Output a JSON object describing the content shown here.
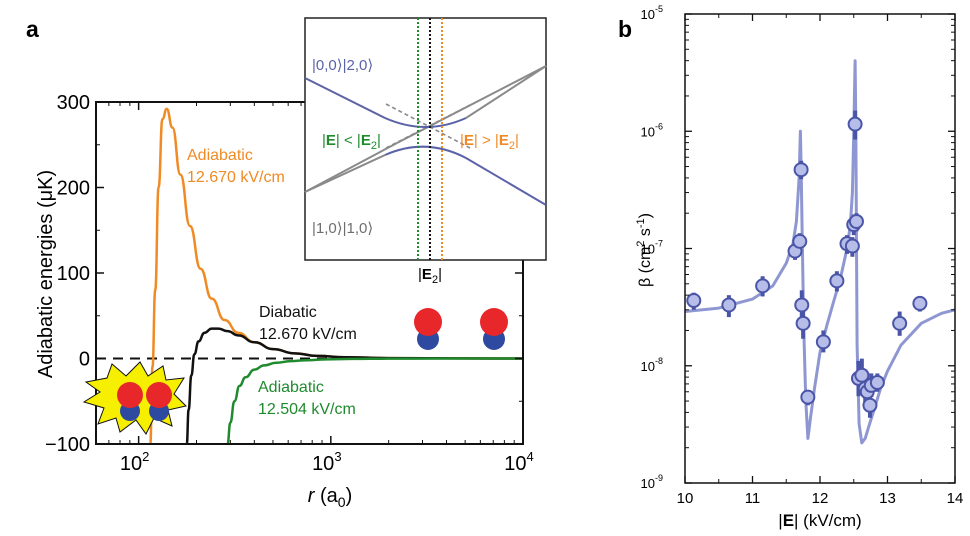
{
  "panel_a": {
    "label": "a",
    "chart_data": {
      "type": "line",
      "xlabel_italic": "r",
      "xlabel_rest": " (a",
      "xlabel_sub": "0",
      "xlabel_close": ")",
      "ylabel": "Adiabatic energies (μK)",
      "xscale": "log",
      "xlim": [
        60,
        10000
      ],
      "ylim": [
        -100,
        300
      ],
      "xticks": [
        {
          "base": "10",
          "exp": "2",
          "value": 100
        },
        {
          "base": "10",
          "exp": "3",
          "value": 1000
        },
        {
          "base": "10",
          "exp": "4",
          "value": 10000
        }
      ],
      "yticks": [
        {
          "label": "300",
          "value": 300
        },
        {
          "label": "200",
          "value": 200
        },
        {
          "label": "100",
          "value": 100
        },
        {
          "label": "0",
          "value": 0
        },
        {
          "label": "−100",
          "value": -100
        }
      ],
      "series": [
        {
          "name": "Adiabatic 12.670 kV/cm",
          "color": "#f08a24",
          "line1": "Adiabatic",
          "line2": "12.670 kV/cm",
          "r": [
            115,
            118,
            122,
            127,
            133,
            140,
            150,
            165,
            185,
            210,
            240,
            280,
            330,
            400,
            500,
            650,
            850,
            1200,
            2000,
            5000,
            10000
          ],
          "E": [
            -100,
            -10,
            80,
            200,
            280,
            292,
            270,
            215,
            155,
            105,
            70,
            45,
            30,
            19,
            11,
            6,
            3,
            1.5,
            0.5,
            0.1,
            0
          ]
        },
        {
          "name": "Diabatic 12.670 kV/cm",
          "color": "#111111",
          "line1": "Diabatic",
          "line2": "12.670 kV/cm",
          "r": [
            178,
            182,
            188,
            195,
            205,
            220,
            240,
            260,
            290,
            330,
            400,
            500,
            650,
            850,
            1200,
            2000,
            5000,
            10000
          ],
          "E": [
            -100,
            -60,
            -20,
            5,
            20,
            30,
            35,
            35,
            32,
            27,
            19,
            11,
            6,
            3,
            1.5,
            0.5,
            0.1,
            0
          ]
        },
        {
          "name": "Adiabatic 12.504 kV/cm",
          "color": "#1f8a2e",
          "line1": "Adiabatic",
          "line2": "12.504 kV/cm",
          "r": [
            290,
            300,
            315,
            335,
            360,
            400,
            450,
            520,
            620,
            750,
            950,
            1300,
            2000,
            4000,
            10000
          ],
          "E": [
            -100,
            -75,
            -50,
            -32,
            -22,
            -13,
            -8,
            -5,
            -3,
            -2,
            -1,
            -0.5,
            -0.2,
            -0.05,
            0
          ]
        }
      ],
      "zero_line": 0
    },
    "inset": {
      "top_label": "|0,0⟩|2,0⟩",
      "bottom_label": "|1,0⟩|1,0⟩",
      "left_cond_a": "|",
      "left_cond_E": "E",
      "left_cond_b": "| < |",
      "left_cond_E2": "E",
      "left_cond_sub": "2",
      "left_cond_c": "|",
      "right_cond_a": "|",
      "right_cond_E": "E",
      "right_cond_b": "| > |",
      "right_cond_E2": "E",
      "right_cond_sub": "2",
      "right_cond_c": "|",
      "axis_a": "|",
      "axis_E": "E",
      "axis_sub": "2",
      "axis_c": "|",
      "colors": {
        "blue": "#5b63a8",
        "gray": "#8a8a8a",
        "green": "#1f8a2e",
        "orange": "#f08a24",
        "black": "#111111"
      }
    }
  },
  "panel_b": {
    "label": "b",
    "chart_data": {
      "type": "scatter",
      "xlabel_a": "|",
      "xlabel_E": "E",
      "xlabel_rest": "| (kV/cm)",
      "ylabel_main": "β (cm",
      "ylabel_sup1": "2",
      "ylabel_mid": " s",
      "ylabel_sup2": "-1",
      "ylabel_close": ")",
      "yscale": "log",
      "xlim": [
        10,
        14
      ],
      "ylim": [
        1e-09,
        1e-05
      ],
      "xticks": [
        {
          "label": "10",
          "value": 10
        },
        {
          "label": "11",
          "value": 11
        },
        {
          "label": "12",
          "value": 12
        },
        {
          "label": "13",
          "value": 13
        },
        {
          "label": "14",
          "value": 14
        }
      ],
      "yticks": [
        {
          "base": "10",
          "exp": "-5",
          "value": -5
        },
        {
          "base": "10",
          "exp": "-6",
          "value": -6
        },
        {
          "base": "10",
          "exp": "-7",
          "value": -7
        },
        {
          "base": "10",
          "exp": "-8",
          "value": -8
        },
        {
          "base": "10",
          "exp": "-9",
          "value": -9
        }
      ],
      "points": [
        {
          "x": 10.13,
          "y": 3.6e-08,
          "lo": 3e-08,
          "hi": 4.2e-08
        },
        {
          "x": 10.65,
          "y": 3.3e-08,
          "lo": 2.6e-08,
          "hi": 4e-08
        },
        {
          "x": 11.15,
          "y": 4.8e-08,
          "lo": 3.9e-08,
          "hi": 5.8e-08
        },
        {
          "x": 11.63,
          "y": 9.5e-08,
          "lo": 8e-08,
          "hi": 1.1e-07
        },
        {
          "x": 11.7,
          "y": 1.15e-07,
          "lo": 9.5e-08,
          "hi": 1.35e-07
        },
        {
          "x": 11.72,
          "y": 4.7e-07,
          "lo": 3.9e-07,
          "hi": 5.6e-07
        },
        {
          "x": 11.73,
          "y": 3.3e-08,
          "lo": 2.4e-08,
          "hi": 4.4e-08
        },
        {
          "x": 11.75,
          "y": 2.3e-08,
          "lo": 1.7e-08,
          "hi": 3e-08
        },
        {
          "x": 11.82,
          "y": 5.4e-09,
          "lo": 4.6e-09,
          "hi": 6.2e-09
        },
        {
          "x": 12.05,
          "y": 1.6e-08,
          "lo": 1.3e-08,
          "hi": 2e-08
        },
        {
          "x": 12.25,
          "y": 5.3e-08,
          "lo": 4.3e-08,
          "hi": 6.4e-08
        },
        {
          "x": 12.4,
          "y": 1.1e-07,
          "lo": 9e-08,
          "hi": 1.3e-07
        },
        {
          "x": 12.48,
          "y": 1.05e-07,
          "lo": 8.5e-08,
          "hi": 1.25e-07
        },
        {
          "x": 12.5,
          "y": 1.6e-07,
          "lo": 1.3e-07,
          "hi": 1.95e-07
        },
        {
          "x": 12.52,
          "y": 1.15e-06,
          "lo": 8.5e-07,
          "hi": 1.5e-06
        },
        {
          "x": 12.54,
          "y": 1.7e-07,
          "lo": 1.4e-07,
          "hi": 2e-07
        },
        {
          "x": 12.57,
          "y": 7.8e-09,
          "lo": 5.5e-09,
          "hi": 1.1e-08
        },
        {
          "x": 12.62,
          "y": 8.3e-09,
          "lo": 6e-09,
          "hi": 1.15e-08
        },
        {
          "x": 12.67,
          "y": 6.4e-09,
          "lo": 4.3e-09,
          "hi": 9.3e-09
        },
        {
          "x": 12.7,
          "y": 6e-09,
          "lo": 4.2e-09,
          "hi": 8.7e-09
        },
        {
          "x": 12.74,
          "y": 4.6e-09,
          "lo": 3.6e-09,
          "hi": 5.8e-09
        },
        {
          "x": 12.76,
          "y": 6.8e-09,
          "lo": 5.4e-09,
          "hi": 8.6e-09
        },
        {
          "x": 12.85,
          "y": 7.2e-09,
          "lo": 6e-09,
          "hi": 8.6e-09
        },
        {
          "x": 13.18,
          "y": 2.3e-08,
          "lo": 1.8e-08,
          "hi": 2.9e-08
        },
        {
          "x": 13.48,
          "y": 3.4e-08,
          "lo": 2.9e-08,
          "hi": 3.9e-08
        }
      ],
      "fit": {
        "color": "#8e97d2",
        "x": [
          10.0,
          10.5,
          11.0,
          11.3,
          11.5,
          11.6,
          11.65,
          11.69,
          11.71,
          11.72,
          11.74,
          11.76,
          11.79,
          11.82,
          11.86,
          11.92,
          12.0,
          12.1,
          12.2,
          12.3,
          12.4,
          12.45,
          12.48,
          12.5,
          12.52,
          12.53,
          12.54,
          12.55,
          12.58,
          12.62,
          12.67,
          12.72,
          12.8,
          12.9,
          13.0,
          13.2,
          13.5,
          13.8,
          14.0
        ],
        "y": [
          2.9e-08,
          3.1e-08,
          3.7e-08,
          4.8e-08,
          7.5e-08,
          1.1e-07,
          1.7e-07,
          4e-07,
          1e-06,
          5e-07,
          9e-08,
          2e-08,
          5e-09,
          2.4e-09,
          3.6e-09,
          6.5e-09,
          1.3e-08,
          2.2e-08,
          3.5e-08,
          5.5e-08,
          1e-07,
          1.6e-07,
          3e-07,
          1e-06,
          4e-06,
          1.2e-06,
          1.5e-07,
          1.5e-08,
          3.2e-09,
          2.2e-09,
          2.4e-09,
          3e-09,
          4.2e-09,
          6.5e-09,
          9e-09,
          1.5e-08,
          2.3e-08,
          2.8e-08,
          3e-08
        ]
      },
      "point_color": "#b6bde8",
      "point_edge": "#4a55a8"
    }
  }
}
